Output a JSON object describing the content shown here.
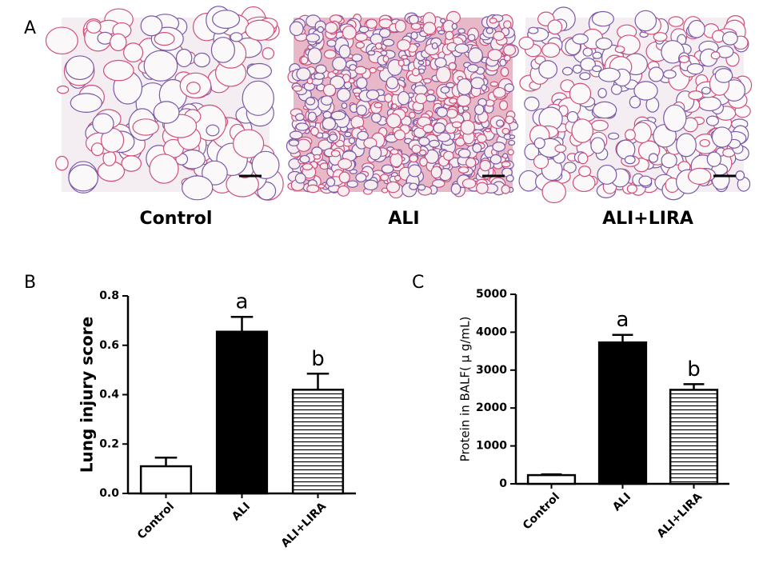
{
  "figure": {
    "panel_labels": [
      "A",
      "B",
      "C"
    ],
    "image_captions": [
      "Control",
      "ALI",
      "ALI+LIRA"
    ]
  },
  "chart_data": [
    {
      "type": "bar",
      "ylabel": "Lung injury score",
      "categories": [
        "Control",
        "ALI",
        "ALI+LIRA"
      ],
      "values": [
        0.11,
        0.655,
        0.42
      ],
      "errors": [
        0.035,
        0.06,
        0.065
      ],
      "significance_labels": [
        null,
        "a",
        "b"
      ],
      "fills": [
        "#ffffff",
        "#000000",
        "hstripes"
      ],
      "ylim": [
        0,
        0.8
      ],
      "yticks": [
        {
          "value": 0,
          "label": "0.0"
        },
        0.2,
        0.4,
        0.6,
        0.8
      ]
    },
    {
      "type": "bar",
      "ylabel": "Protein in BALF( μ g/mL)",
      "categories": [
        "Control",
        "ALI",
        "ALI+LIRA"
      ],
      "values": [
        230,
        3730,
        2480
      ],
      "errors": [
        20,
        200,
        150
      ],
      "significance_labels": [
        null,
        "a",
        "b"
      ],
      "fills": [
        "#ffffff",
        "#000000",
        "hstripes"
      ],
      "ylim": [
        0,
        5000
      ],
      "yticks": [
        0,
        1000,
        2000,
        3000,
        4000,
        5000
      ]
    }
  ]
}
